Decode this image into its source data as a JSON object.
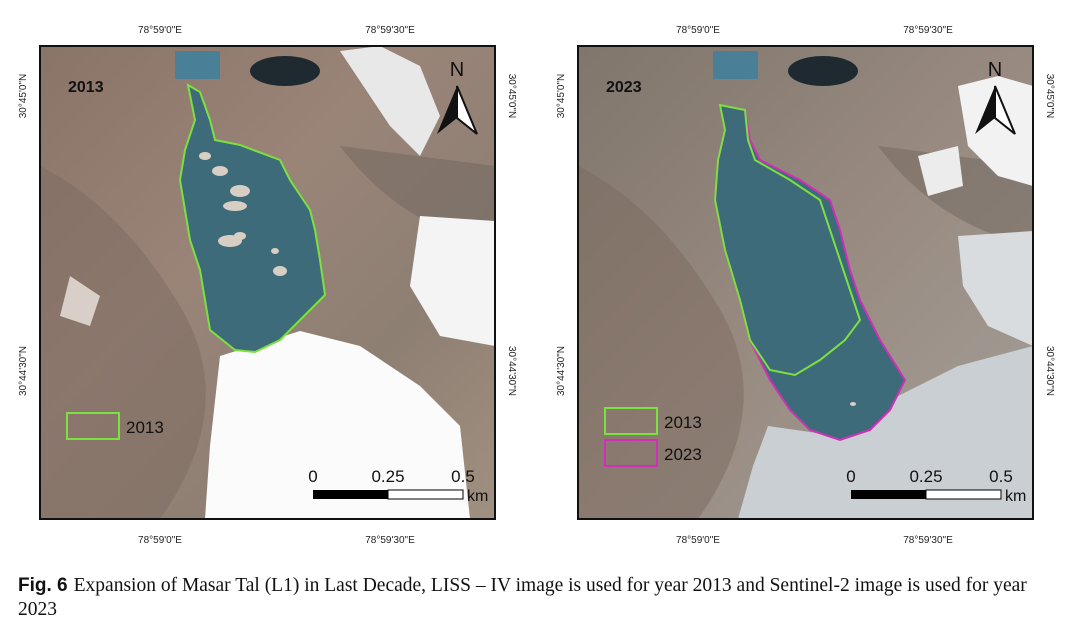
{
  "panels": [
    {
      "year_label": "2013",
      "top_lon_labels": [
        "78°59'0\"E",
        "78°59'30\"E"
      ],
      "bottom_lon_labels": [
        "78°59'0\"E",
        "78°59'30\"E"
      ],
      "left_lat_labels": [
        "30°45'0\"N",
        "30°44'30\"N"
      ],
      "right_lat_labels": [
        "30°45'0\"N",
        "30°44'30\"N"
      ],
      "north": "N",
      "scale_labels": [
        "0",
        "0.25",
        "0.5"
      ],
      "scale_unit": "km",
      "legend": [
        "2013"
      ]
    },
    {
      "year_label": "2023",
      "top_lon_labels": [
        "78°59'0\"E",
        "78°59'30\"E"
      ],
      "bottom_lon_labels": [
        "78°59'0\"E",
        "78°59'30\"E"
      ],
      "left_lat_labels": [
        "30°45'0\"N",
        "30°44'30\"N"
      ],
      "right_lat_labels": [
        "30°45'0\"N",
        "30°44'30\"N"
      ],
      "north": "N",
      "scale_labels": [
        "0",
        "0.25",
        "0.5"
      ],
      "scale_unit": "km",
      "legend": [
        "2013",
        "2023"
      ]
    }
  ],
  "caption": {
    "label": "Fig. 6",
    "text": "Expansion of Masar Tal (L1) in Last Decade, LISS – IV image is used for year 2013 and Sentinel-2 image is used for year 2023"
  }
}
